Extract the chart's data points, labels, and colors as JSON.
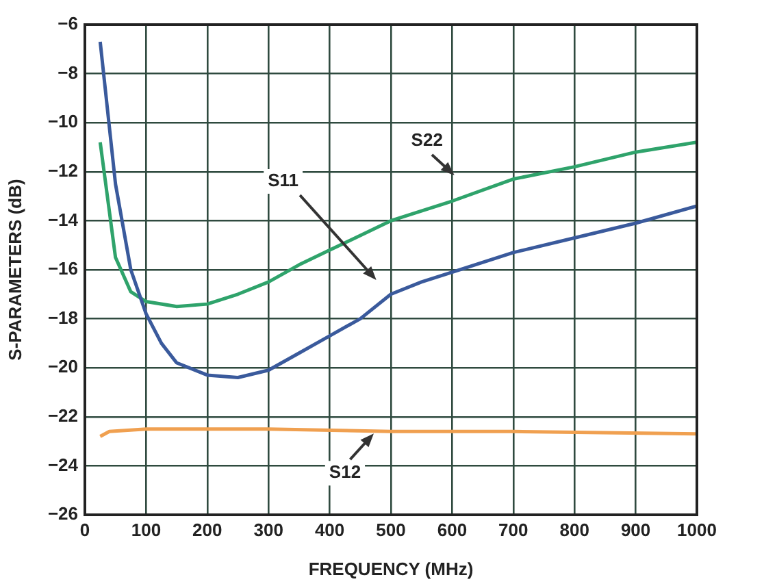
{
  "chart_data": {
    "type": "line",
    "xlabel": "FREQUENCY (MHz)",
    "ylabel": "S-PARAMETERS (dB)",
    "xlim": [
      0,
      1000
    ],
    "xticks": [
      0,
      100,
      200,
      300,
      400,
      500,
      600,
      700,
      800,
      900,
      1000
    ],
    "ylim": [
      -26,
      -6
    ],
    "yticks": [
      {
        "value": -26,
        "label": "−26"
      },
      {
        "value": -24,
        "label": "−24"
      },
      {
        "value": -22,
        "label": "−22"
      },
      {
        "value": -20,
        "label": "−20"
      },
      {
        "value": -18,
        "label": "−18"
      },
      {
        "value": -16,
        "label": "−16"
      },
      {
        "value": -14,
        "label": "−14"
      },
      {
        "value": -12,
        "label": "−12"
      },
      {
        "value": -10,
        "label": "−10"
      },
      {
        "value": -8,
        "label": "−8"
      },
      {
        "value": -6,
        "label": "−6"
      }
    ],
    "grid": true,
    "legend": false,
    "marker": "none",
    "line_style": "solid",
    "series": [
      {
        "color": "#3a5a9c",
        "x": [
          25,
          50,
          75,
          100,
          125,
          150,
          200,
          250,
          300,
          350,
          400,
          450,
          500,
          550,
          600,
          700,
          800,
          900,
          1000
        ],
        "values": [
          -6.7,
          -12.5,
          -16,
          -17.8,
          -19,
          -19.8,
          -20.3,
          -20.4,
          -20.1,
          -19.4,
          -18.7,
          -18,
          -17,
          -16.5,
          -16.1,
          -15.3,
          -14.7,
          -14.1,
          -13.4
        ]
      },
      {
        "color": "#2fa36b",
        "x": [
          25,
          50,
          75,
          100,
          150,
          200,
          250,
          300,
          350,
          400,
          450,
          500,
          600,
          700,
          800,
          900,
          1000
        ],
        "values": [
          -10.8,
          -15.5,
          -16.9,
          -17.3,
          -17.5,
          -17.4,
          -17,
          -16.5,
          -15.8,
          -15.2,
          -14.6,
          -14,
          -13.2,
          -12.3,
          -11.8,
          -11.2,
          -10.8
        ]
      },
      {
        "color": "#f0a050",
        "x": [
          25,
          40,
          100,
          300,
          500,
          700,
          1000
        ],
        "values": [
          -22.8,
          -22.6,
          -22.5,
          -22.5,
          -22.6,
          -22.6,
          -22.7
        ]
      }
    ],
    "annotations": [
      {
        "text": "S11",
        "x": 324,
        "y": -12.4
      },
      {
        "text": "S22",
        "x": 559,
        "y": -10.75
      },
      {
        "text": "S12",
        "x": 425,
        "y": -24.3
      }
    ]
  }
}
